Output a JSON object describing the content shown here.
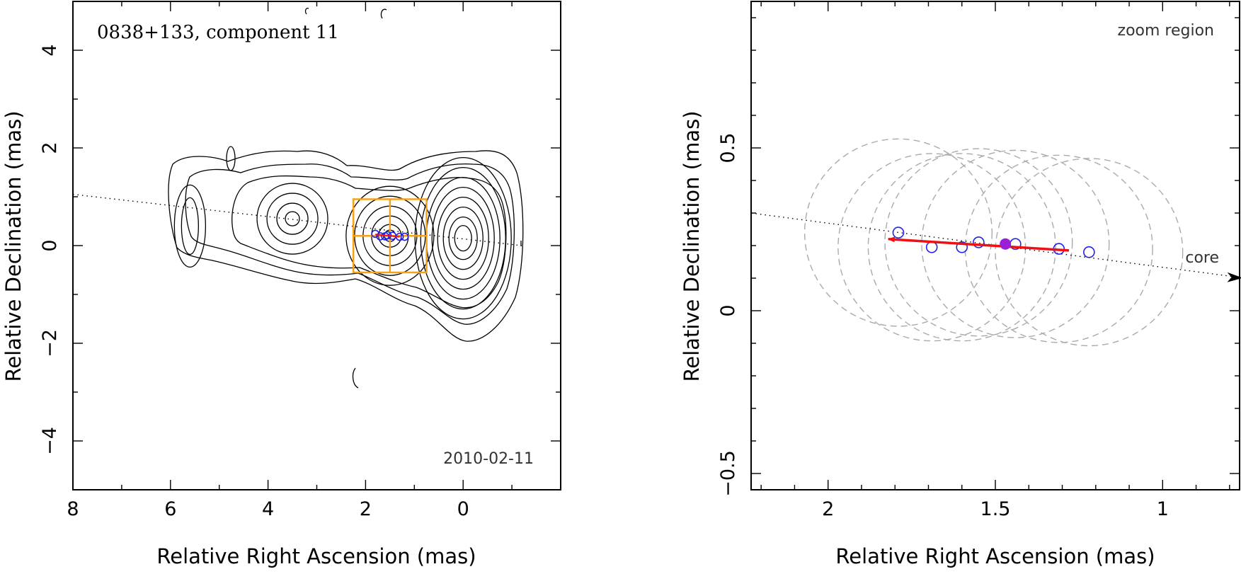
{
  "chart_data": [
    {
      "type": "contour",
      "title": "0838+133, component 11",
      "date": "2010-02-11",
      "xlabel": "Relative Right Ascension (mas)",
      "ylabel": "Relative Declination (mas)",
      "xlim": [
        8,
        -2
      ],
      "ylim": [
        -5,
        5
      ],
      "xticks": [
        8,
        6,
        4,
        2,
        0
      ],
      "xtick_labels": [
        "8",
        "6",
        "4",
        "2",
        "0"
      ],
      "yticks": [
        4,
        2,
        0,
        -2,
        -4
      ],
      "ytick_labels": [
        "4",
        "2",
        "0",
        "−2",
        "−4"
      ],
      "contour_centers": [
        {
          "x": 0.0,
          "y": 0.15
        },
        {
          "x": 1.5,
          "y": 0.2
        },
        {
          "x": 3.5,
          "y": 0.55
        },
        {
          "x": 5.6,
          "y": 0.4
        }
      ],
      "jet_axis": {
        "from": [
          8,
          1.05
        ],
        "to": [
          -1.2,
          0.0
        ]
      },
      "zoom_box": {
        "x": [
          2.25,
          0.75
        ],
        "y": [
          -0.55,
          0.95
        ]
      },
      "component_positions": [
        {
          "x": 1.8,
          "y": 0.24
        },
        {
          "x": 1.7,
          "y": 0.19
        },
        {
          "x": 1.6,
          "y": 0.19
        },
        {
          "x": 1.55,
          "y": 0.21
        },
        {
          "x": 1.45,
          "y": 0.2
        },
        {
          "x": 1.3,
          "y": 0.18
        },
        {
          "x": 1.2,
          "y": 0.18
        }
      ]
    },
    {
      "type": "scatter",
      "annotation": "zoom region",
      "core_label": "core",
      "xlabel": "Relative Right Ascension (mas)",
      "ylabel": "Relative Declination (mas)",
      "xlim": [
        2.23,
        0.77
      ],
      "ylim": [
        -0.55,
        0.95
      ],
      "xticks": [
        2,
        1.5,
        1
      ],
      "xtick_labels": [
        "2",
        "1.5",
        "1"
      ],
      "yticks": [
        0.5,
        0,
        -0.5
      ],
      "ytick_labels": [
        "0.5",
        "0",
        "−0.5"
      ],
      "points": [
        {
          "x": 1.79,
          "y": 0.24
        },
        {
          "x": 1.69,
          "y": 0.195
        },
        {
          "x": 1.6,
          "y": 0.195
        },
        {
          "x": 1.55,
          "y": 0.21
        },
        {
          "x": 1.44,
          "y": 0.205
        },
        {
          "x": 1.31,
          "y": 0.19
        },
        {
          "x": 1.22,
          "y": 0.18
        }
      ],
      "current_point": {
        "x": 1.47,
        "y": 0.205
      },
      "beam_radius": 0.28,
      "motion_vector": {
        "from": [
          1.28,
          0.185
        ],
        "to": [
          1.82,
          0.22
        ]
      },
      "jet_axis": {
        "from": [
          2.23,
          0.3
        ],
        "to": [
          0.79,
          0.105
        ]
      },
      "colors": {
        "points": "#2222ee",
        "current": "#9b1fd9",
        "vector": "#ee1111",
        "beam": "#aaaaaa",
        "zoom_box": "#f5a21b"
      }
    }
  ]
}
